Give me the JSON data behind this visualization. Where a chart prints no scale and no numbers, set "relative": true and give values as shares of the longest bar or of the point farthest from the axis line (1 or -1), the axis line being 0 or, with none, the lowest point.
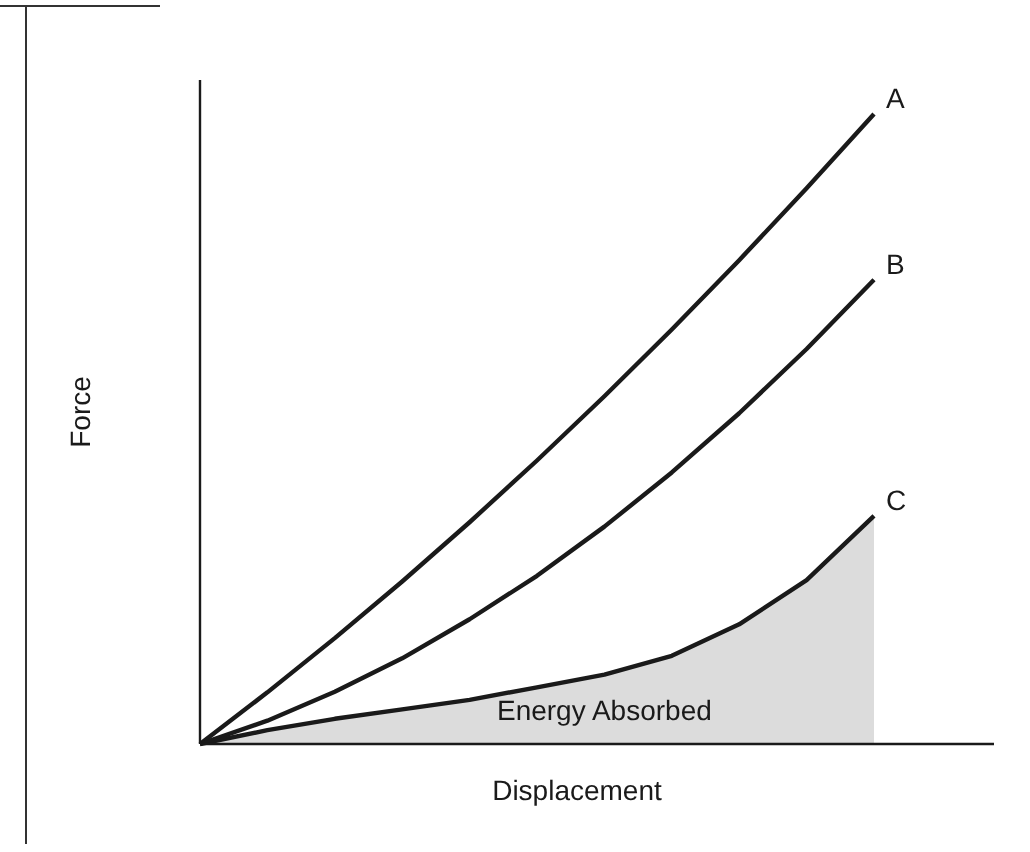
{
  "chart_data": {
    "type": "line",
    "relative": true,
    "xlabel": "Displacement",
    "ylabel": "Force",
    "categories": [
      null,
      null,
      null,
      null,
      null,
      null,
      null,
      null,
      null,
      null,
      null
    ],
    "series": [
      {
        "name": "A",
        "color": "#1a1a1a",
        "values": [
          0,
          0.082,
          0.168,
          0.258,
          0.352,
          0.45,
          0.552,
          0.658,
          0.768,
          0.882,
          1.0
        ]
      },
      {
        "name": "B",
        "color": "#1a1a1a",
        "values": [
          0,
          0.037,
          0.083,
          0.136,
          0.198,
          0.267,
          0.345,
          0.431,
          0.525,
          0.627,
          0.737
        ]
      },
      {
        "name": "C",
        "type": "area",
        "color": "#dcdcdc",
        "values": [
          0,
          0.022,
          0.04,
          0.055,
          0.07,
          0.09,
          0.11,
          0.14,
          0.19,
          0.26,
          0.362
        ]
      }
    ],
    "annotations": [
      "Energy Absorbed"
    ],
    "grid": false
  }
}
